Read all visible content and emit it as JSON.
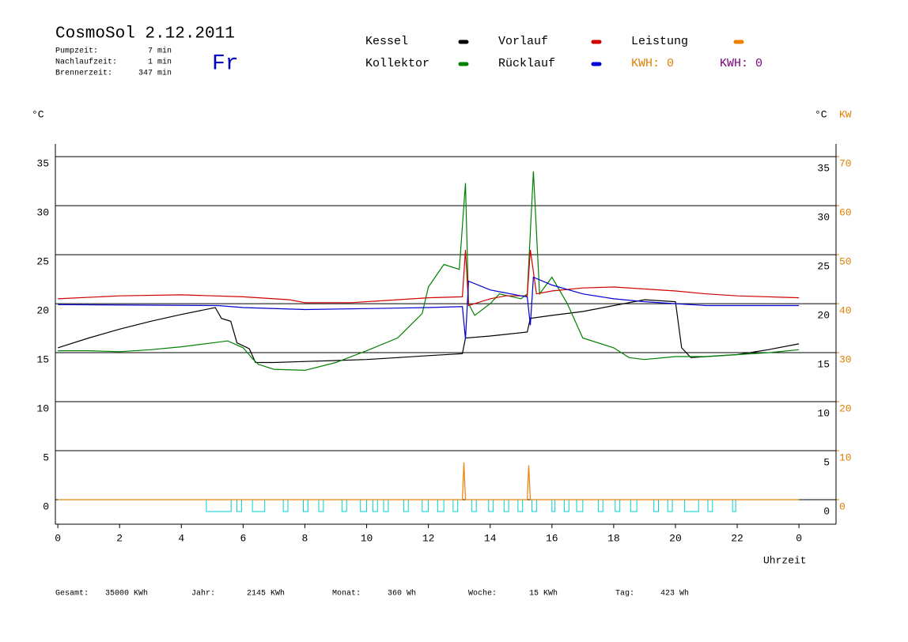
{
  "header": {
    "title": "CosmoSol 2.12.2011",
    "day": "Fr",
    "stats": [
      {
        "label": "Pumpzeit:",
        "value": "7 min"
      },
      {
        "label": "Nachlaufzeit:",
        "value": "1 min"
      },
      {
        "label": "Brennerzeit:",
        "value": "347 min"
      }
    ],
    "kwh": [
      {
        "text": "KWH: 0",
        "color": "#e08000"
      },
      {
        "text": "KWH: 0",
        "color": "#800080"
      }
    ]
  },
  "footer": [
    {
      "label": "Gesamt:",
      "value": "35000 KWh"
    },
    {
      "label": "Jahr:",
      "value": "2145 KWh"
    },
    {
      "label": "Monat:",
      "value": "360 Wh"
    },
    {
      "label": "Woche:",
      "value": "15 KWh"
    },
    {
      "label": "Tag:",
      "value": "423 Wh"
    }
  ],
  "chart_data": {
    "type": "line",
    "y_label": "°C",
    "y2_label_unit": "°C",
    "y2_label": "KW",
    "x_label": "Uhrzeit",
    "xlim": [
      -0.08,
      25.2
    ],
    "ylim": [
      -2.5,
      36.3
    ],
    "y2lim": [
      -5,
      72.6
    ],
    "xticks": [
      0,
      2,
      4,
      6,
      8,
      10,
      12,
      14,
      16,
      18,
      20,
      22,
      {
        "value": 24,
        "label": "0"
      }
    ],
    "yticks": [
      0,
      5,
      10,
      15,
      20,
      25,
      30,
      35
    ],
    "y2ticks": [
      0,
      10,
      20,
      30,
      40,
      50,
      60,
      70
    ],
    "grid": true,
    "series": [
      {
        "name": "Kessel",
        "color": "#000000",
        "x": [
          0,
          1,
          2,
          3,
          4,
          5.1,
          5.3,
          5.6,
          5.8,
          6.2,
          6.4,
          7,
          8,
          9,
          10,
          11,
          12,
          13.1,
          13.2,
          14,
          15.2,
          15.3,
          16,
          17,
          18,
          19,
          20,
          20.2,
          20.5,
          21,
          22,
          23,
          24
        ],
        "values": [
          15.5,
          16.5,
          17.4,
          18.2,
          18.9,
          19.6,
          18.5,
          18.2,
          16,
          15.4,
          14,
          14,
          14.1,
          14.2,
          14.3,
          14.5,
          14.7,
          14.9,
          16.5,
          16.7,
          17.1,
          18.5,
          18.8,
          19.2,
          19.8,
          20.4,
          20.2,
          15.5,
          14.5,
          14.6,
          14.8,
          15.3,
          15.9
        ]
      },
      {
        "name": "Kollektor",
        "color": "#008000",
        "x": [
          0,
          1,
          2,
          3,
          4,
          5,
          5.5,
          6,
          6.3,
          6.5,
          7,
          8,
          9,
          10,
          11,
          11.8,
          12,
          12.5,
          13,
          13.2,
          13.3,
          13.5,
          14,
          14.3,
          15,
          15.2,
          15.4,
          15.6,
          16,
          16.5,
          17,
          18,
          18.5,
          19,
          20,
          21,
          22,
          23,
          24
        ],
        "values": [
          15.2,
          15.2,
          15.1,
          15.3,
          15.6,
          16,
          16.2,
          15.5,
          14.4,
          13.8,
          13.3,
          13.2,
          14,
          15.2,
          16.5,
          19,
          21.7,
          24,
          23.5,
          32.3,
          20,
          18.8,
          20,
          21,
          20.5,
          21,
          33.5,
          21,
          22.7,
          20,
          16.5,
          15.5,
          14.5,
          14.3,
          14.6,
          14.6,
          14.8,
          15,
          15.3
        ]
      },
      {
        "name": "Vorlauf",
        "color": "#d00000",
        "x": [
          0,
          2,
          4,
          6,
          7.5,
          8,
          9.5,
          10.5,
          12,
          13.1,
          13.2,
          13.3,
          14,
          14.5,
          15.2,
          15.3,
          15.5,
          16,
          17,
          18,
          19,
          20,
          21,
          22,
          24
        ],
        "values": [
          20.5,
          20.8,
          20.9,
          20.7,
          20.4,
          20.1,
          20.1,
          20.3,
          20.6,
          20.7,
          25.5,
          19.8,
          20.5,
          20.8,
          20.8,
          25.5,
          21,
          21.3,
          21.6,
          21.7,
          21.5,
          21.3,
          21,
          20.8,
          20.6
        ]
      },
      {
        "name": "Rücklauf",
        "color": "#0000d0",
        "x": [
          0,
          5.2,
          6,
          8,
          10,
          12,
          13.1,
          13.2,
          13.3,
          14,
          15,
          15.2,
          15.3,
          15.4,
          16,
          17,
          18,
          19,
          20,
          21,
          22,
          24
        ],
        "values": [
          19.9,
          19.8,
          19.6,
          19.4,
          19.5,
          19.6,
          19.7,
          16.4,
          22.3,
          21.4,
          20.8,
          20.7,
          17.8,
          22.7,
          21.9,
          21,
          20.5,
          20.2,
          20,
          19.8,
          19.8,
          19.8
        ]
      },
      {
        "name": "Leistung",
        "color": "#f08000",
        "axis": "y2",
        "x": [
          0,
          13.1,
          13.15,
          13.2,
          15.2,
          15.25,
          15.3,
          24
        ],
        "values": [
          0,
          0,
          7.6,
          0,
          0,
          7,
          0,
          0
        ]
      }
    ],
    "pump_on": [
      [
        4.81,
        5.61
      ],
      [
        5.8,
        5.95
      ],
      [
        6.3,
        6.7
      ],
      [
        7.3,
        7.45
      ],
      [
        7.95,
        8.1
      ],
      [
        8.45,
        8.6
      ],
      [
        9.2,
        9.35
      ],
      [
        9.8,
        10.0
      ],
      [
        10.2,
        10.35
      ],
      [
        10.55,
        10.7
      ],
      [
        11.2,
        11.35
      ],
      [
        11.8,
        12.0
      ],
      [
        12.3,
        12.5
      ],
      [
        12.8,
        12.95
      ],
      [
        13.4,
        13.55
      ],
      [
        13.95,
        14.1
      ],
      [
        14.45,
        14.6
      ],
      [
        14.9,
        15.05
      ],
      [
        15.35,
        15.5
      ],
      [
        16.0,
        16.1
      ],
      [
        16.4,
        16.55
      ],
      [
        16.8,
        17.0
      ],
      [
        17.5,
        17.65
      ],
      [
        18.05,
        18.2
      ],
      [
        18.55,
        18.75
      ],
      [
        19.3,
        19.45
      ],
      [
        19.75,
        19.9
      ],
      [
        20.3,
        20.75
      ],
      [
        21.05,
        21.2
      ],
      [
        21.85,
        21.95
      ]
    ],
    "pump_color": "#00d0d0"
  }
}
